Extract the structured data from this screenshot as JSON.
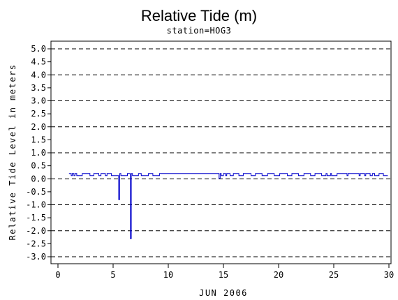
{
  "chart_data": {
    "type": "line",
    "title": "Relative Tide (m)",
    "subtitle": "station=HOG3",
    "xlabel": "JUN 2006",
    "ylabel": "Relative Tide Level in meters",
    "xlim": [
      0,
      30
    ],
    "ylim": [
      -3.0,
      5.0
    ],
    "x_ticks": [
      0,
      5,
      10,
      15,
      20,
      25,
      30
    ],
    "y_ticks": [
      5.0,
      4.5,
      4.0,
      3.5,
      3.0,
      2.5,
      2.0,
      1.5,
      1.0,
      0.5,
      0.0,
      -0.5,
      -1.0,
      -1.5,
      -2.0,
      -2.5,
      -3.0
    ],
    "y_tick_labels": [
      "5.0",
      "4.5",
      "4.0",
      "3.5",
      "3.0",
      "2.5",
      "2.0",
      "1.5",
      "1.0",
      "0.5",
      "0.0",
      "-0.5",
      "-1.0",
      "-1.5",
      "-2.0",
      "-2.5",
      "-3.0"
    ],
    "grid": "dashed horizontal lines at integer y values",
    "series": [
      {
        "color": "#0000cc",
        "x": [
          1.0,
          1.2,
          1.2,
          1.3,
          1.3,
          1.45,
          1.45,
          1.55,
          1.55,
          1.7,
          1.7,
          2.2,
          2.2,
          2.9,
          2.9,
          3.25,
          3.25,
          3.7,
          3.7,
          3.9,
          3.9,
          4.3,
          4.3,
          4.45,
          4.45,
          4.85,
          4.85,
          5.5,
          5.5,
          5.6,
          5.6,
          5.7,
          5.7,
          6.3,
          6.3,
          6.55,
          6.55,
          6.65,
          6.65,
          6.75,
          6.75,
          7.3,
          7.3,
          7.55,
          7.55,
          8.2,
          8.2,
          8.6,
          8.6,
          9.2,
          9.2,
          9.6,
          9.6,
          14.6,
          14.6,
          14.7,
          14.7,
          14.8,
          14.8,
          15.0,
          15.0,
          15.2,
          15.2,
          15.3,
          15.3,
          15.6,
          15.6,
          15.9,
          15.9,
          16.4,
          16.4,
          16.8,
          16.8,
          17.5,
          17.5,
          17.9,
          17.9,
          18.5,
          18.5,
          19.0,
          19.0,
          19.6,
          19.6,
          20.1,
          20.1,
          20.8,
          20.8,
          21.2,
          21.2,
          21.8,
          21.8,
          22.3,
          22.3,
          22.9,
          22.9,
          23.3,
          23.3,
          23.9,
          23.9,
          24.3,
          24.3,
          24.4,
          24.4,
          24.7,
          24.7,
          24.8,
          24.8,
          25.3,
          25.3,
          26.2,
          26.2,
          26.3,
          26.3,
          27.3,
          27.3,
          27.4,
          27.4,
          27.8,
          27.8,
          27.9,
          27.9,
          28.3,
          28.3,
          28.5,
          28.5,
          28.7,
          28.7,
          29.1,
          29.1,
          29.5,
          29.5,
          29.9
        ],
        "y": [
          0.2,
          0.2,
          0.12,
          0.12,
          0.2,
          0.2,
          0.12,
          0.12,
          0.2,
          0.2,
          0.12,
          0.12,
          0.2,
          0.2,
          0.12,
          0.12,
          0.2,
          0.2,
          0.12,
          0.12,
          0.2,
          0.2,
          0.12,
          0.12,
          0.2,
          0.2,
          0.12,
          0.12,
          -0.8,
          -0.8,
          0.2,
          0.2,
          0.12,
          0.12,
          0.2,
          0.2,
          -2.3,
          -2.3,
          0.2,
          0.2,
          0.12,
          0.12,
          0.2,
          0.2,
          0.12,
          0.12,
          0.2,
          0.2,
          0.12,
          0.12,
          0.2,
          0.2,
          0.2,
          0.2,
          0.02,
          0.02,
          0.2,
          0.2,
          0.12,
          0.12,
          0.2,
          0.2,
          0.12,
          0.12,
          0.2,
          0.2,
          0.12,
          0.12,
          0.2,
          0.2,
          0.12,
          0.12,
          0.2,
          0.2,
          0.12,
          0.12,
          0.2,
          0.2,
          0.12,
          0.12,
          0.2,
          0.2,
          0.12,
          0.12,
          0.2,
          0.2,
          0.12,
          0.12,
          0.2,
          0.2,
          0.12,
          0.12,
          0.2,
          0.2,
          0.12,
          0.12,
          0.2,
          0.2,
          0.12,
          0.12,
          0.2,
          0.2,
          0.12,
          0.12,
          0.2,
          0.2,
          0.12,
          0.12,
          0.2,
          0.2,
          0.12,
          0.12,
          0.2,
          0.2,
          0.12,
          0.12,
          0.2,
          0.2,
          0.12,
          0.12,
          0.2,
          0.2,
          0.12,
          0.12,
          0.2,
          0.2,
          0.12,
          0.12,
          0.2,
          0.2,
          0.12,
          0.12
        ]
      }
    ]
  }
}
